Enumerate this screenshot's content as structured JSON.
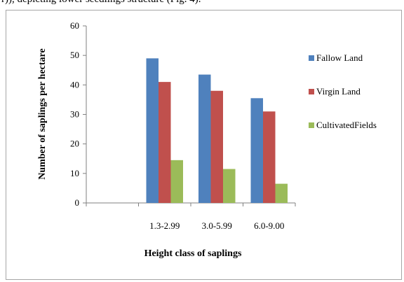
{
  "header_text": "r)), depicting lower seedlings structure (Fig. 4).",
  "chart_data": {
    "type": "bar",
    "categories": [
      "",
      "1.3-2.99",
      "3.0-5.99",
      "6.0-9.00"
    ],
    "series": [
      {
        "name": "Fallow Land",
        "color": "#4f81bd",
        "values": [
          null,
          49,
          43.5,
          35.5
        ]
      },
      {
        "name": "Virgin Land",
        "color": "#c0504d",
        "values": [
          null,
          41,
          38,
          31
        ]
      },
      {
        "name": "CultivatedFields",
        "color": "#9bbb59",
        "values": [
          null,
          14.5,
          11.5,
          6.5
        ]
      }
    ],
    "title": "",
    "xlabel": "Height class of saplings",
    "ylabel": "Number of saplings per hectare",
    "ylim": [
      0,
      60
    ],
    "yticks": [
      0,
      10,
      20,
      30,
      40,
      50,
      60
    ],
    "grid": false,
    "legend_position": "right"
  }
}
